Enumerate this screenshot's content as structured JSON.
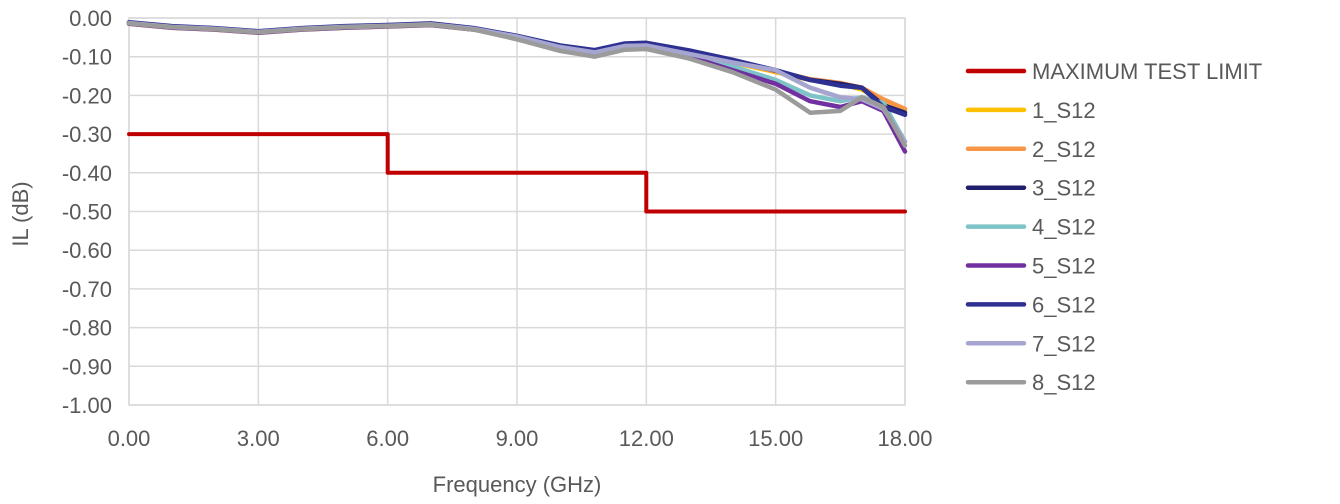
{
  "chart_data": {
    "type": "line",
    "title": "",
    "xlabel": "Frequency (GHz)",
    "ylabel": "IL (dB)",
    "xlim": [
      0,
      18
    ],
    "ylim": [
      -1.0,
      0.0
    ],
    "x_ticks": [
      "0.00",
      "3.00",
      "6.00",
      "9.00",
      "12.00",
      "15.00",
      "18.00"
    ],
    "y_ticks": [
      "0.00",
      "-0.10",
      "-0.20",
      "-0.30",
      "-0.40",
      "-0.50",
      "-0.60",
      "-0.70",
      "-0.80",
      "-0.90",
      "-1.00"
    ],
    "grid": true,
    "legend_position": "right",
    "series": [
      {
        "name": "MAXIMUM TEST LIMIT",
        "color": "#C00000",
        "x": [
          0,
          6,
          6,
          12,
          12,
          18
        ],
        "y": [
          -0.3,
          -0.3,
          -0.4,
          -0.4,
          -0.5,
          -0.5
        ]
      },
      {
        "name": "1_S12",
        "color": "#FFC000",
        "x": [
          0,
          1,
          2,
          3,
          4,
          5,
          6,
          7,
          8,
          9,
          10,
          10.8,
          11.5,
          12,
          13,
          14,
          15,
          15.8,
          16.5,
          17,
          17.5,
          18
        ],
        "y": [
          -0.015,
          -0.025,
          -0.03,
          -0.038,
          -0.03,
          -0.025,
          -0.022,
          -0.018,
          -0.03,
          -0.05,
          -0.075,
          -0.088,
          -0.072,
          -0.07,
          -0.09,
          -0.115,
          -0.14,
          -0.16,
          -0.17,
          -0.185,
          -0.215,
          -0.24
        ]
      },
      {
        "name": "2_S12",
        "color": "#F79646",
        "x": [
          0,
          1,
          2,
          3,
          4,
          5,
          6,
          7,
          8,
          9,
          10,
          10.8,
          11.5,
          12,
          13,
          14,
          15,
          15.8,
          16.5,
          17,
          17.5,
          18
        ],
        "y": [
          -0.014,
          -0.024,
          -0.029,
          -0.037,
          -0.029,
          -0.024,
          -0.021,
          -0.017,
          -0.029,
          -0.049,
          -0.074,
          -0.087,
          -0.071,
          -0.069,
          -0.089,
          -0.113,
          -0.138,
          -0.158,
          -0.168,
          -0.18,
          -0.21,
          -0.235
        ]
      },
      {
        "name": "3_S12",
        "color": "#1F1F6E",
        "x": [
          0,
          1,
          2,
          3,
          4,
          5,
          6,
          7,
          8,
          9,
          10,
          10.8,
          11.5,
          12,
          13,
          14,
          15,
          15.8,
          16.5,
          17,
          17.5,
          18
        ],
        "y": [
          -0.012,
          -0.022,
          -0.027,
          -0.035,
          -0.027,
          -0.022,
          -0.019,
          -0.015,
          -0.027,
          -0.047,
          -0.072,
          -0.085,
          -0.068,
          -0.066,
          -0.086,
          -0.11,
          -0.136,
          -0.16,
          -0.17,
          -0.18,
          -0.225,
          -0.245
        ]
      },
      {
        "name": "4_S12",
        "color": "#7DC3C7",
        "x": [
          0,
          1,
          2,
          3,
          4,
          5,
          6,
          7,
          8,
          9,
          10,
          10.8,
          11.5,
          12,
          13,
          14,
          15,
          15.8,
          16.5,
          17,
          17.5,
          18
        ],
        "y": [
          -0.014,
          -0.024,
          -0.029,
          -0.037,
          -0.029,
          -0.024,
          -0.021,
          -0.017,
          -0.029,
          -0.05,
          -0.076,
          -0.09,
          -0.073,
          -0.072,
          -0.095,
          -0.125,
          -0.16,
          -0.2,
          -0.215,
          -0.205,
          -0.22,
          -0.32
        ]
      },
      {
        "name": "5_S12",
        "color": "#7030A0",
        "x": [
          0,
          1,
          2,
          3,
          4,
          5,
          6,
          7,
          8,
          9,
          10,
          10.8,
          11.5,
          12,
          13,
          14,
          15,
          15.8,
          16.5,
          17,
          17.5,
          18
        ],
        "y": [
          -0.015,
          -0.025,
          -0.03,
          -0.038,
          -0.03,
          -0.025,
          -0.022,
          -0.018,
          -0.03,
          -0.052,
          -0.08,
          -0.095,
          -0.078,
          -0.077,
          -0.1,
          -0.135,
          -0.17,
          -0.215,
          -0.23,
          -0.215,
          -0.24,
          -0.345
        ]
      },
      {
        "name": "6_S12",
        "color": "#2E3192",
        "x": [
          0,
          1,
          2,
          3,
          4,
          5,
          6,
          7,
          8,
          9,
          10,
          10.8,
          11.5,
          12,
          13,
          14,
          15,
          15.8,
          16.5,
          17,
          17.5,
          18
        ],
        "y": [
          -0.011,
          -0.021,
          -0.026,
          -0.034,
          -0.026,
          -0.021,
          -0.018,
          -0.014,
          -0.026,
          -0.046,
          -0.071,
          -0.083,
          -0.066,
          -0.064,
          -0.084,
          -0.108,
          -0.135,
          -0.16,
          -0.175,
          -0.18,
          -0.23,
          -0.25
        ]
      },
      {
        "name": "7_S12",
        "color": "#A5A5D0",
        "x": [
          0,
          1,
          2,
          3,
          4,
          5,
          6,
          7,
          8,
          9,
          10,
          10.8,
          11.5,
          12,
          13,
          14,
          15,
          15.8,
          16.5,
          17,
          17.5,
          18
        ],
        "y": [
          -0.013,
          -0.023,
          -0.028,
          -0.036,
          -0.028,
          -0.023,
          -0.02,
          -0.016,
          -0.028,
          -0.048,
          -0.075,
          -0.089,
          -0.072,
          -0.071,
          -0.093,
          -0.115,
          -0.135,
          -0.18,
          -0.205,
          -0.21,
          -0.235,
          -0.32
        ]
      },
      {
        "name": "8_S12",
        "color": "#9B9B9B",
        "x": [
          0,
          1,
          2,
          3,
          4,
          5,
          6,
          7,
          8,
          9,
          10,
          10.8,
          11.5,
          12,
          13,
          14,
          15,
          15.8,
          16.5,
          17,
          17.5,
          18
        ],
        "y": [
          -0.014,
          -0.024,
          -0.029,
          -0.037,
          -0.029,
          -0.024,
          -0.021,
          -0.017,
          -0.03,
          -0.055,
          -0.085,
          -0.1,
          -0.082,
          -0.08,
          -0.105,
          -0.14,
          -0.185,
          -0.245,
          -0.24,
          -0.205,
          -0.23,
          -0.33
        ]
      }
    ]
  }
}
